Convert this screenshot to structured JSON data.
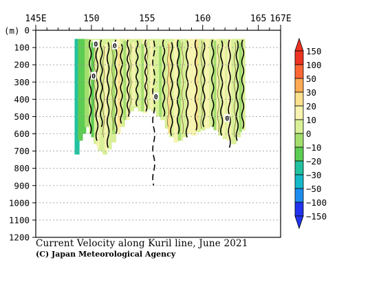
{
  "chart_data": {
    "type": "heatmap",
    "title": "Current Velocity along Kuril line, June 2021",
    "credit": "(C) Japan Meteorological Agency",
    "ylabel": "(m)",
    "xlim": [
      145,
      167
    ],
    "ylim": [
      0,
      1200
    ],
    "x_ticks": [
      145,
      150,
      155,
      160,
      165,
      167
    ],
    "x_tick_labels": [
      "145E",
      "150",
      "155",
      "160",
      "165",
      "167E"
    ],
    "y_ticks": [
      0,
      100,
      200,
      300,
      400,
      500,
      600,
      700,
      800,
      900,
      1000,
      1100,
      1200
    ],
    "y_tick_labels": [
      "0",
      "100",
      "200",
      "300",
      "400",
      "500",
      "600",
      "700",
      "800",
      "900",
      "1000",
      "1100",
      "1200"
    ],
    "grid": true,
    "colorbar": {
      "labels": [
        "150",
        "100",
        "50",
        "30",
        "20",
        "10",
        "0",
        "-10",
        "-20",
        "-30",
        "-50",
        "-100",
        "-150"
      ],
      "colors": [
        "#ee3322",
        "#ff6633",
        "#ffaa55",
        "#fbe08f",
        "#f7f3b0",
        "#d9f098",
        "#a3de6e",
        "#5ccc52",
        "#22c2a0",
        "#14b9c8",
        "#1e8cef",
        "#2233ee"
      ]
    },
    "contour_labels": [
      {
        "text": "0",
        "x": 150.4,
        "y": 80
      },
      {
        "text": "0",
        "x": 152.1,
        "y": 90
      },
      {
        "text": "0",
        "x": 150.2,
        "y": 265
      },
      {
        "text": "0",
        "x": 155.8,
        "y": 385
      },
      {
        "text": "0",
        "x": 162.2,
        "y": 510
      }
    ],
    "columns": [
      {
        "x": 148.7,
        "depth": 720,
        "v": -20
      },
      {
        "x": 149.0,
        "depth": 640,
        "v": -15
      },
      {
        "x": 149.3,
        "depth": 600,
        "v": -12
      },
      {
        "x": 149.6,
        "depth": 560,
        "v": -8
      },
      {
        "x": 150.0,
        "depth": 600,
        "v": 5
      },
      {
        "x": 150.4,
        "depth": 660,
        "v": 8
      },
      {
        "x": 150.8,
        "depth": 700,
        "v": 5
      },
      {
        "x": 151.2,
        "depth": 720,
        "v": 10
      },
      {
        "x": 151.6,
        "depth": 690,
        "v": 3
      },
      {
        "x": 152.0,
        "depth": 650,
        "v": 8
      },
      {
        "x": 152.4,
        "depth": 600,
        "v": 12
      },
      {
        "x": 152.8,
        "depth": 560,
        "v": 6
      },
      {
        "x": 153.2,
        "depth": 520,
        "v": 15
      },
      {
        "x": 153.6,
        "depth": 470,
        "v": 5
      },
      {
        "x": 154.0,
        "depth": 450,
        "v": 10
      },
      {
        "x": 154.4,
        "depth": 470,
        "v": 3
      },
      {
        "x": 154.8,
        "depth": 480,
        "v": 12
      },
      {
        "x": 155.2,
        "depth": 460,
        "v": 6
      },
      {
        "x": 155.6,
        "depth": 470,
        "v": 2
      },
      {
        "x": 156.0,
        "depth": 500,
        "v": 8
      },
      {
        "x": 156.4,
        "depth": 520,
        "v": 5
      },
      {
        "x": 156.8,
        "depth": 570,
        "v": 10
      },
      {
        "x": 157.2,
        "depth": 620,
        "v": 4
      },
      {
        "x": 157.6,
        "depth": 650,
        "v": 12
      },
      {
        "x": 158.0,
        "depth": 640,
        "v": 6
      },
      {
        "x": 158.4,
        "depth": 620,
        "v": 3
      },
      {
        "x": 158.8,
        "depth": 600,
        "v": 12
      },
      {
        "x": 159.2,
        "depth": 610,
        "v": 15
      },
      {
        "x": 159.6,
        "depth": 590,
        "v": 8
      },
      {
        "x": 160.0,
        "depth": 580,
        "v": 10
      },
      {
        "x": 160.4,
        "depth": 570,
        "v": 14
      },
      {
        "x": 160.8,
        "depth": 560,
        "v": 6
      },
      {
        "x": 161.2,
        "depth": 580,
        "v": 11
      },
      {
        "x": 161.6,
        "depth": 610,
        "v": 8
      },
      {
        "x": 162.0,
        "depth": 630,
        "v": 4
      },
      {
        "x": 162.4,
        "depth": 640,
        "v": 12
      },
      {
        "x": 162.8,
        "depth": 660,
        "v": 6
      },
      {
        "x": 163.2,
        "depth": 620,
        "v": 3
      },
      {
        "x": 163.6,
        "depth": 580,
        "v": 7
      }
    ],
    "streams": [
      {
        "x": 150.1,
        "from": 70,
        "to": 620,
        "v": -15
      },
      {
        "x": 150.6,
        "from": 60,
        "to": 680,
        "v": 12
      },
      {
        "x": 151.3,
        "from": 80,
        "to": 700,
        "v": 18
      },
      {
        "x": 152.0,
        "from": 70,
        "to": 600,
        "v": -8
      },
      {
        "x": 152.5,
        "from": 90,
        "to": 560,
        "v": 22
      },
      {
        "x": 153.0,
        "from": 60,
        "to": 520,
        "v": -5
      },
      {
        "x": 153.8,
        "from": 70,
        "to": 440,
        "v": 15
      },
      {
        "x": 154.6,
        "from": 80,
        "to": 470,
        "v": -6
      },
      {
        "x": 155.4,
        "from": 60,
        "to": 460,
        "v": 20
      },
      {
        "x": 156.2,
        "from": 90,
        "to": 500,
        "v": -4
      },
      {
        "x": 157.0,
        "from": 70,
        "to": 600,
        "v": 24
      },
      {
        "x": 157.9,
        "from": 60,
        "to": 640,
        "v": -7
      },
      {
        "x": 158.7,
        "from": 80,
        "to": 600,
        "v": 16
      },
      {
        "x": 159.5,
        "from": 50,
        "to": 580,
        "v": 26
      },
      {
        "x": 160.3,
        "from": 70,
        "to": 560,
        "v": 12
      },
      {
        "x": 161.1,
        "from": 60,
        "to": 580,
        "v": -6
      },
      {
        "x": 161.9,
        "from": 80,
        "to": 620,
        "v": 18
      },
      {
        "x": 162.7,
        "from": 60,
        "to": 650,
        "v": 10
      },
      {
        "x": 163.4,
        "from": 70,
        "to": 590,
        "v": -9
      }
    ],
    "contours": [
      {
        "x": 149.9,
        "from": 55,
        "to": 600
      },
      {
        "x": 150.5,
        "from": 60,
        "to": 640
      },
      {
        "x": 150.9,
        "from": 55,
        "to": 560
      },
      {
        "x": 151.5,
        "from": 70,
        "to": 680
      },
      {
        "x": 152.2,
        "from": 55,
        "to": 600
      },
      {
        "x": 152.7,
        "from": 80,
        "to": 540
      },
      {
        "x": 153.3,
        "from": 55,
        "to": 500
      },
      {
        "x": 154.1,
        "from": 60,
        "to": 440
      },
      {
        "x": 154.9,
        "from": 55,
        "to": 470
      },
      {
        "x": 155.6,
        "from": 60,
        "to": 900
      },
      {
        "x": 156.5,
        "from": 55,
        "to": 500
      },
      {
        "x": 157.2,
        "from": 70,
        "to": 610
      },
      {
        "x": 157.8,
        "from": 55,
        "to": 600
      },
      {
        "x": 158.6,
        "from": 60,
        "to": 620
      },
      {
        "x": 159.4,
        "from": 55,
        "to": 580
      },
      {
        "x": 160.1,
        "from": 70,
        "to": 560
      },
      {
        "x": 160.9,
        "from": 55,
        "to": 560
      },
      {
        "x": 161.7,
        "from": 60,
        "to": 610
      },
      {
        "x": 162.4,
        "from": 55,
        "to": 680
      },
      {
        "x": 163.1,
        "from": 60,
        "to": 640
      },
      {
        "x": 163.6,
        "from": 55,
        "to": 570
      }
    ],
    "thin_contours": [
      {
        "x": 150.3,
        "from": 60,
        "to": 500
      },
      {
        "x": 151.1,
        "from": 90,
        "to": 620
      },
      {
        "x": 151.9,
        "from": 70,
        "to": 580
      },
      {
        "x": 153.5,
        "from": 80,
        "to": 480
      },
      {
        "x": 155.0,
        "from": 70,
        "to": 450
      },
      {
        "x": 156.9,
        "from": 80,
        "to": 560
      },
      {
        "x": 158.2,
        "from": 70,
        "to": 600
      },
      {
        "x": 159.9,
        "from": 60,
        "to": 570
      },
      {
        "x": 161.4,
        "from": 80,
        "to": 590
      },
      {
        "x": 162.9,
        "from": 70,
        "to": 620
      }
    ]
  }
}
